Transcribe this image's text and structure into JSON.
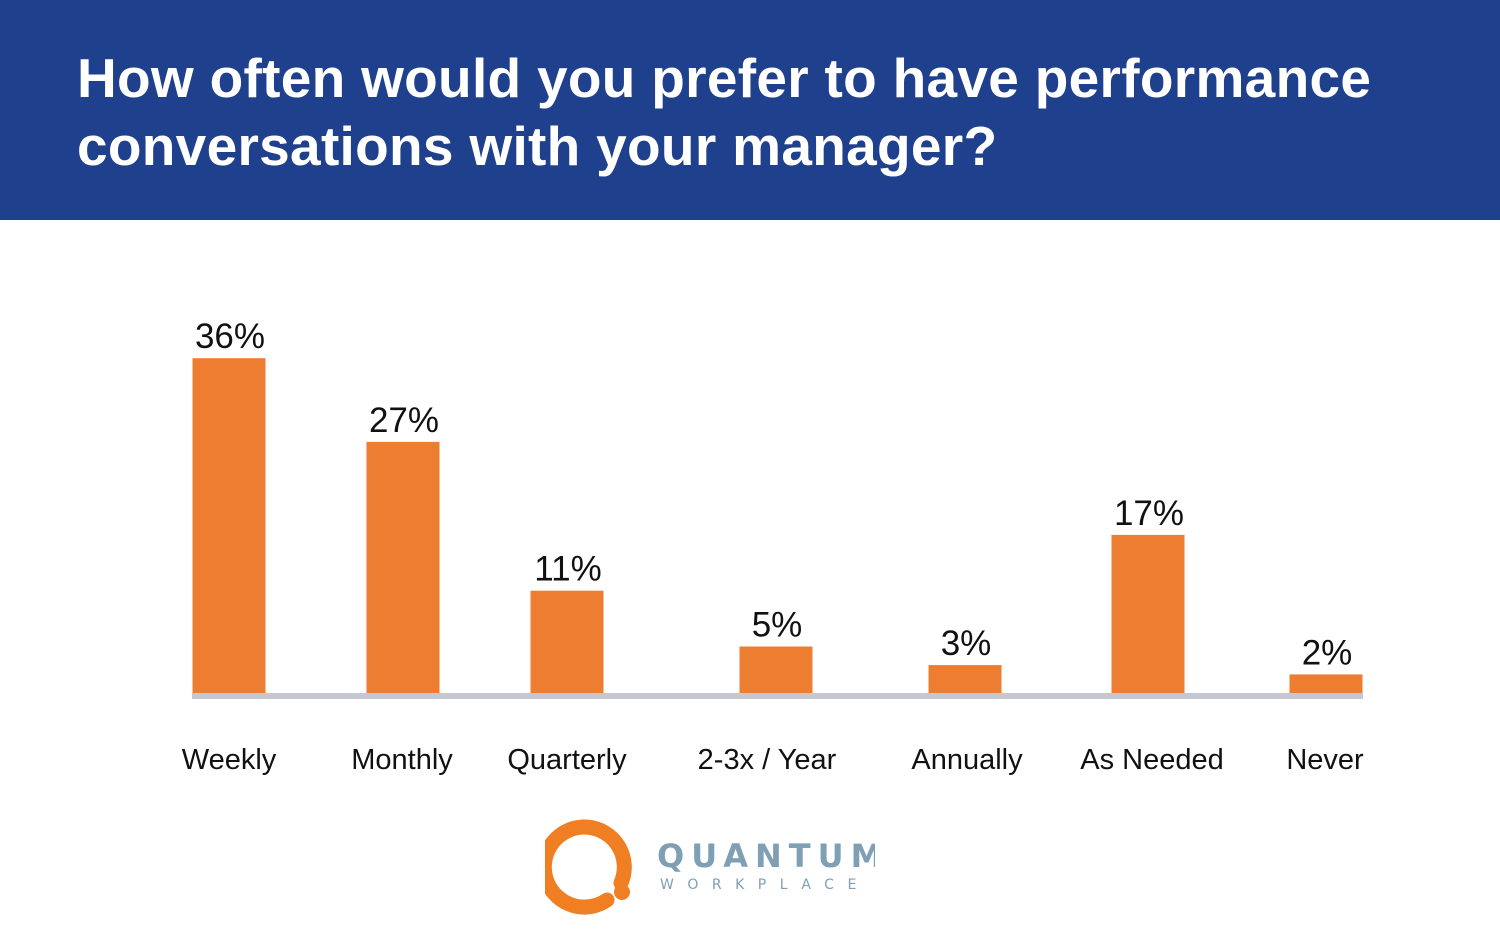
{
  "header": {
    "title": "How often would you prefer to have performance conversations with your manager?"
  },
  "chart_data": {
    "type": "bar",
    "title": "How often would you prefer to have performance conversations with your manager?",
    "categories": [
      "Weekly",
      "Monthly",
      "Quarterly",
      "2-3x / Year",
      "Annually",
      "As Needed",
      "Never"
    ],
    "values": [
      36,
      27,
      11,
      5,
      3,
      17,
      2
    ],
    "data_labels": [
      "36%",
      "27%",
      "11%",
      "5%",
      "3%",
      "17%",
      "2%"
    ],
    "unit": "%",
    "grid": false,
    "legend": "none",
    "colors": {
      "bar": "#ed7d31",
      "baseline": "#c5c7d3",
      "header": "#1f408d"
    }
  },
  "logo": {
    "line1": "QUANTUM",
    "line2": "WORKPLACE",
    "ring_color": "#f07f23",
    "text_color": "#7f9fb4"
  }
}
